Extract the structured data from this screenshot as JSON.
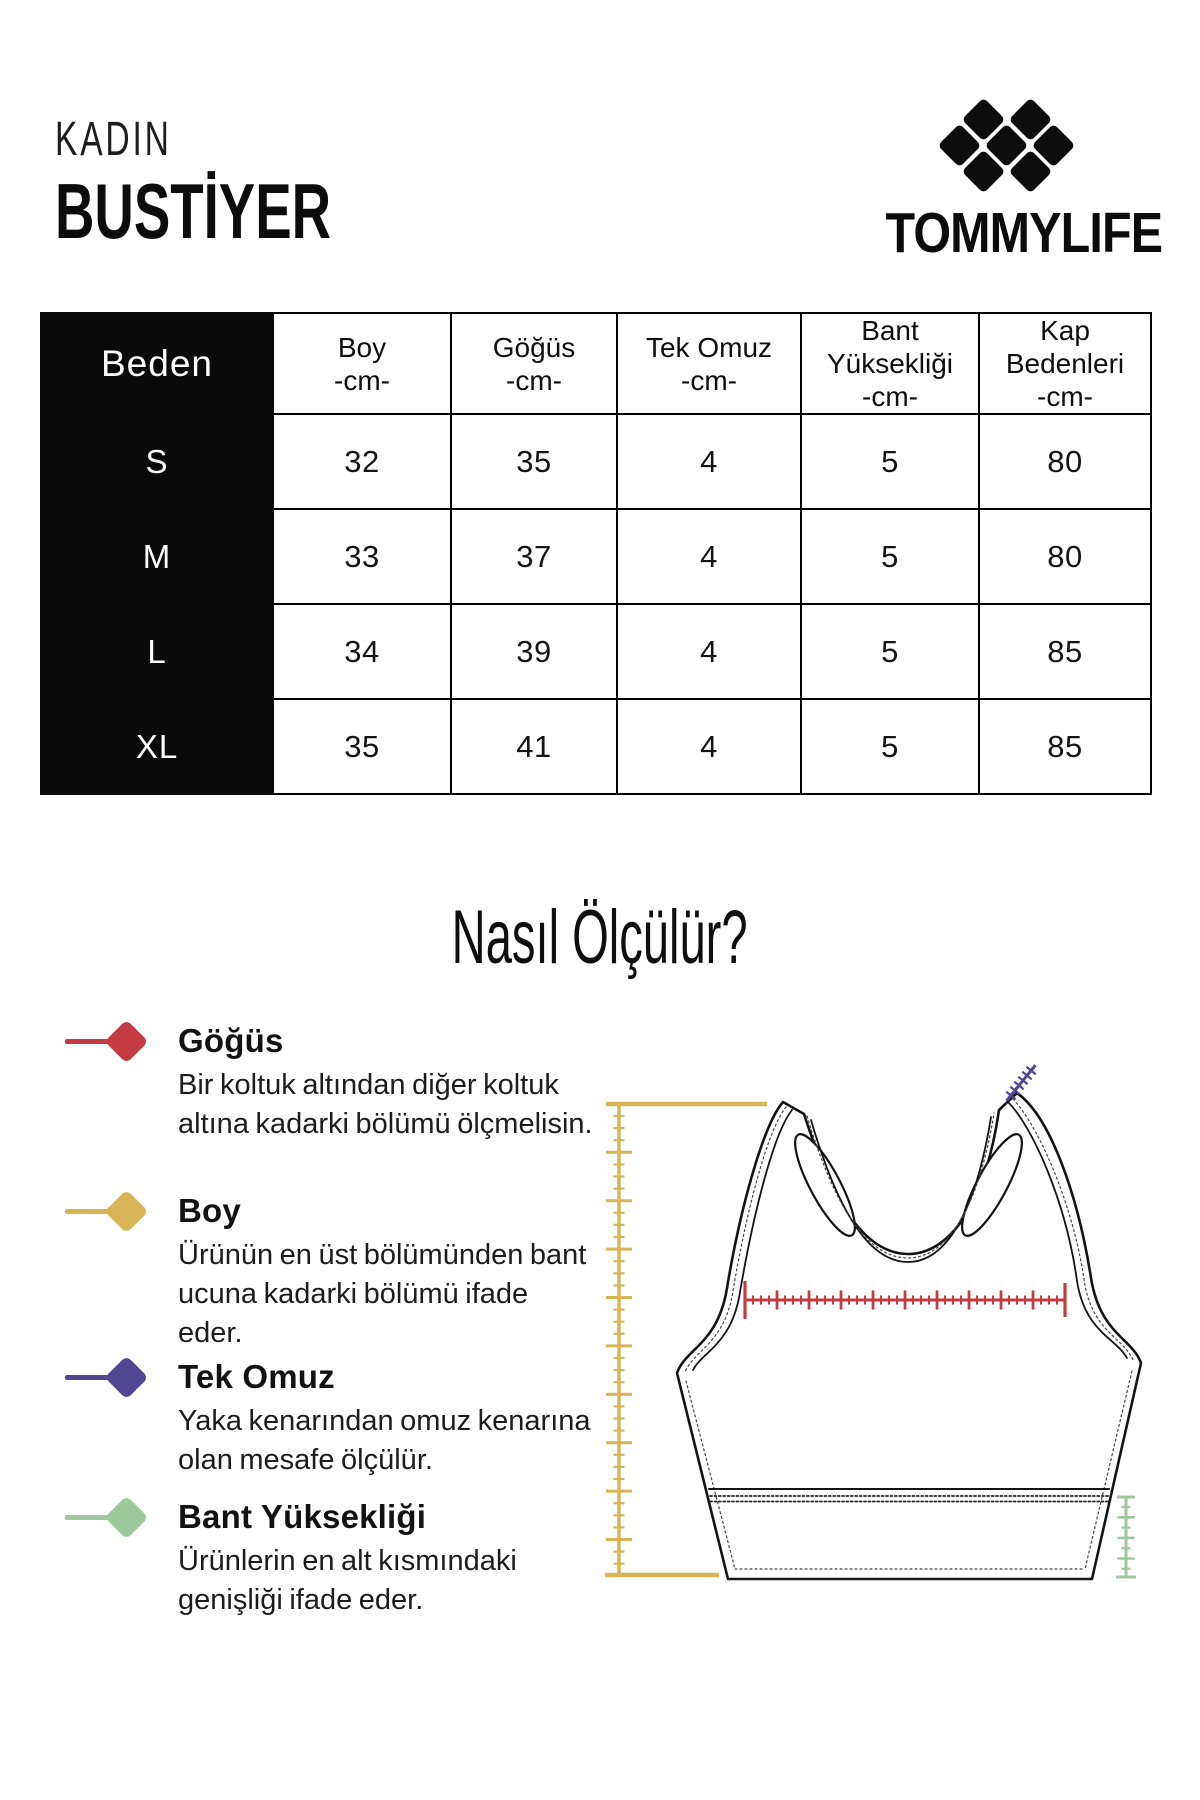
{
  "header": {
    "category": "KADIN",
    "product": "BUSTİYER",
    "brand": "TOMMYLIFE"
  },
  "size_table": {
    "size_column_label": "Beden",
    "columns": [
      {
        "title": "Boy",
        "unit": "-cm-"
      },
      {
        "title": "Göğüs",
        "unit": "-cm-"
      },
      {
        "title": "Tek Omuz",
        "unit": "-cm-"
      },
      {
        "title": "Bant Yüksekliği",
        "unit": "-cm-"
      },
      {
        "title": "Kap Bedenleri",
        "unit": "-cm-"
      }
    ],
    "rows": [
      {
        "size": "S",
        "values": [
          "32",
          "35",
          "4",
          "5",
          "80"
        ]
      },
      {
        "size": "M",
        "values": [
          "33",
          "37",
          "4",
          "5",
          "80"
        ]
      },
      {
        "size": "L",
        "values": [
          "34",
          "39",
          "4",
          "5",
          "85"
        ]
      },
      {
        "size": "XL",
        "values": [
          "35",
          "41",
          "4",
          "5",
          "85"
        ]
      }
    ]
  },
  "measure_section": {
    "title": "Nasıl Ölçülür?",
    "legend": [
      {
        "label": "Göğüs",
        "color": "#c43b42",
        "description": "Bir koltuk altından diğer koltuk altına kadarki bölümü ölçmelisin."
      },
      {
        "label": "Boy",
        "color": "#d9b457",
        "description": "Ürünün en üst bölümünden bant ucuna kadarki bölümü ifade eder."
      },
      {
        "label": "Tek Omuz",
        "color": "#514691",
        "description": "Yaka kenarından omuz kenarına olan mesafe ölçülür."
      },
      {
        "label": "Bant Yüksekliği",
        "color": "#9dc89c",
        "description": "Ürünlerin en alt kısmındaki genişliği ifade eder."
      }
    ]
  }
}
